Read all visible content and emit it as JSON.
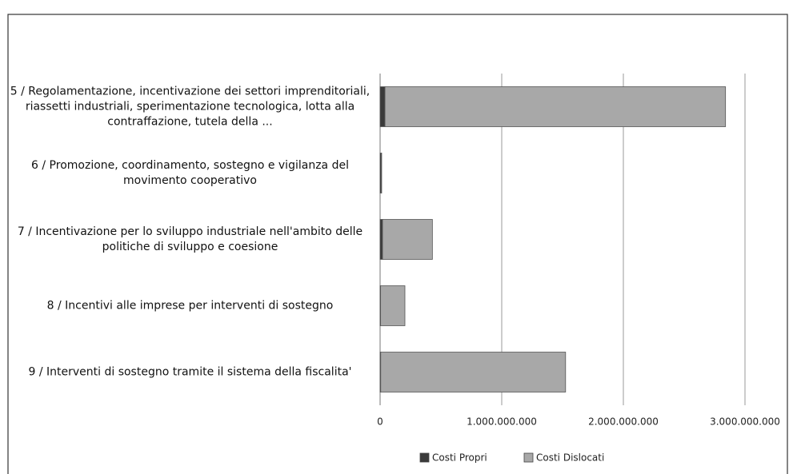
{
  "chart_data": {
    "type": "bar",
    "orientation": "horizontal",
    "stacked": true,
    "categories": [
      "5 / Regolamentazione, incentivazione dei settori imprenditoriali, riassetti industriali, sperimentazione tecnologica, lotta alla contraffazione, tutela della ...",
      "6 / Promozione, coordinamento, sostegno e vigilanza del movimento cooperativo",
      "7 / Incentivazione per lo sviluppo industriale nell'ambito delle politiche di sviluppo e coesione",
      "8 / Incentivi alle imprese per interventi di sostegno",
      "9 / Interventi di sostegno tramite il sistema della fiscalita'"
    ],
    "series": [
      {
        "name": "Costi Propri",
        "color": "#3a3a3a",
        "values": [
          40000000,
          10000000,
          20000000,
          4000000,
          5000000
        ]
      },
      {
        "name": "Costi Dislocati",
        "color": "#a8a8a8",
        "values": [
          2800000000,
          3000000,
          410000000,
          200000000,
          1520000000
        ]
      }
    ],
    "xlim": [
      0,
      3000000000
    ],
    "xticks": [
      0,
      {
        "value": 1000000000,
        "label": "1.000.000.000"
      },
      {
        "value": 2000000000,
        "label": "2.000.000.000"
      },
      {
        "value": 3000000000,
        "label": "3.000.000.000"
      }
    ],
    "grid": true,
    "legend": "bottom"
  }
}
